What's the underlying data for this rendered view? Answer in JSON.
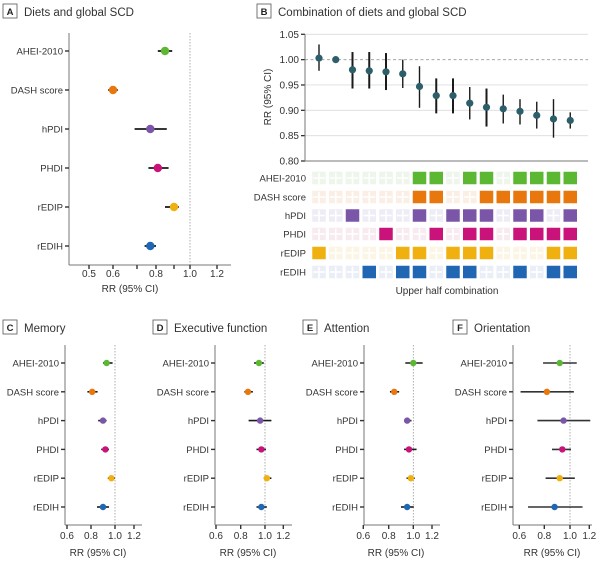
{
  "colors": {
    "AHEI-2010": "#5cb833",
    "DASH score": "#e8770e",
    "hPDI": "#7b56a8",
    "PHDI": "#c9137a",
    "rEDIP": "#f0b010",
    "rEDIH": "#2066b3",
    "combination_point": "#2c5f6a",
    "ci_line": "#1a1a1a"
  },
  "chart_data": [
    {
      "id": "A",
      "type": "scatter",
      "subtype": "forest",
      "panel_letter": "A",
      "title": "Diets and global SCD",
      "xlabel": "RR (95% CI)",
      "ylabel": "",
      "xscale": "log",
      "xlim": [
        0.43,
        1.27
      ],
      "xticks": [
        0.5,
        0.6,
        0.7,
        0.8,
        0.9,
        1.0,
        1.2
      ],
      "xtick_labels": [
        "0.5",
        "0.6",
        "",
        "0.8",
        "",
        "1.0",
        "1.2"
      ],
      "reference_line": 1.0,
      "categories": [
        "AHEI-2010",
        "DASH score",
        "hPDI",
        "PHDI",
        "rEDIP",
        "rEDIH"
      ],
      "values": [
        0.85,
        0.6,
        0.77,
        0.81,
        0.9,
        0.77
      ],
      "ci_low": [
        0.81,
        0.58,
        0.69,
        0.76,
        0.85,
        0.74
      ],
      "ci_high": [
        0.89,
        0.62,
        0.86,
        0.87,
        0.93,
        0.8
      ]
    },
    {
      "id": "B",
      "type": "scatter",
      "subtype": "combination-forest",
      "panel_letter": "B",
      "title": "Combination of diets and global SCD",
      "ylabel": "RR (95% CI)",
      "xlabel": "Upper half combination",
      "ylim": [
        0.8,
        1.05
      ],
      "yticks": [
        "1.05",
        "1.00",
        "0.95",
        "0.90",
        "0.85",
        "0.80"
      ],
      "grid": true,
      "reference_line": 1.0,
      "values": [
        1.003,
        1.0,
        0.98,
        0.978,
        0.976,
        0.972,
        0.947,
        0.929,
        0.929,
        0.914,
        0.906,
        0.903,
        0.898,
        0.89,
        0.883,
        0.88
      ],
      "ci_low": [
        0.978,
        null,
        0.943,
        0.943,
        0.94,
        0.944,
        0.905,
        0.894,
        0.894,
        0.882,
        0.868,
        0.874,
        0.872,
        0.864,
        0.846,
        0.864
      ],
      "ci_high": [
        1.03,
        null,
        1.015,
        1.015,
        1.013,
        1.0,
        0.987,
        0.963,
        0.963,
        0.946,
        0.943,
        0.931,
        0.922,
        0.917,
        0.922,
        0.896
      ],
      "matrix_rows": [
        "AHEI-2010",
        "DASH score",
        "hPDI",
        "PHDI",
        "rEDIP",
        "rEDIH"
      ],
      "matrix": [
        [
          0,
          0,
          0,
          0,
          0,
          0,
          1,
          1,
          0,
          1,
          1,
          0,
          1,
          1,
          1,
          1
        ],
        [
          0,
          0,
          0,
          0,
          0,
          0,
          1,
          1,
          0,
          0,
          1,
          1,
          1,
          1,
          1,
          1
        ],
        [
          0,
          0,
          1,
          0,
          0,
          0,
          1,
          0,
          1,
          1,
          1,
          0,
          1,
          1,
          0,
          1
        ],
        [
          0,
          0,
          0,
          0,
          1,
          0,
          0,
          1,
          0,
          1,
          1,
          0,
          1,
          1,
          1,
          1
        ],
        [
          1,
          0,
          0,
          0,
          0,
          1,
          1,
          0,
          1,
          1,
          1,
          0,
          0,
          0,
          1,
          1
        ],
        [
          0,
          0,
          0,
          1,
          0,
          1,
          1,
          0,
          1,
          1,
          0,
          0,
          1,
          0,
          1,
          1
        ]
      ]
    },
    {
      "id": "C",
      "type": "scatter",
      "subtype": "forest",
      "panel_letter": "C",
      "title": "Memory",
      "xlabel": "RR (95% CI)",
      "xlim": [
        0.55,
        1.27
      ],
      "xticks": [
        0.6,
        0.8,
        1.0,
        1.2
      ],
      "xtick_labels": [
        "0.6",
        "0.8",
        "1.0",
        "1.2"
      ],
      "reference_line": 1.0,
      "categories": [
        "AHEI-2010",
        "DASH score",
        "hPDI",
        "PHDI",
        "rEDIP",
        "rEDIH"
      ],
      "values": [
        0.93,
        0.81,
        0.9,
        0.92,
        0.97,
        0.9
      ],
      "ci_low": [
        0.9,
        0.77,
        0.86,
        0.885,
        0.94,
        0.85
      ],
      "ci_high": [
        0.98,
        0.855,
        0.93,
        0.95,
        1.0,
        0.95
      ]
    },
    {
      "id": "D",
      "type": "scatter",
      "subtype": "forest",
      "panel_letter": "D",
      "title": "Executive function",
      "xlabel": "RR (95% CI)",
      "xlim": [
        0.55,
        1.27
      ],
      "xticks": [
        0.6,
        0.8,
        1.0,
        1.2
      ],
      "xtick_labels": [
        "0.6",
        "0.8",
        "1.0",
        "1.2"
      ],
      "reference_line": 1.0,
      "categories": [
        "AHEI-2010",
        "DASH score",
        "hPDI",
        "PHDI",
        "rEDIP",
        "rEDIH"
      ],
      "values": [
        0.95,
        0.86,
        0.96,
        0.97,
        1.02,
        0.97
      ],
      "ci_low": [
        0.91,
        0.83,
        0.865,
        0.93,
        0.99,
        0.93
      ],
      "ci_high": [
        0.99,
        0.9,
        1.07,
        1.01,
        1.07,
        1.02
      ]
    },
    {
      "id": "E",
      "type": "scatter",
      "subtype": "forest",
      "panel_letter": "E",
      "title": "Attention",
      "xlabel": "RR (95% CI)",
      "xlim": [
        0.55,
        1.27
      ],
      "xticks": [
        0.6,
        0.8,
        1.0,
        1.2
      ],
      "xtick_labels": [
        "0.6",
        "0.8",
        "1.0",
        "1.2"
      ],
      "reference_line": 1.0,
      "categories": [
        "AHEI-2010",
        "DASH score",
        "hPDI",
        "PHDI",
        "rEDIP",
        "rEDIH"
      ],
      "values": [
        1.0,
        0.845,
        0.95,
        0.965,
        0.98,
        0.95
      ],
      "ci_low": [
        0.935,
        0.81,
        0.925,
        0.925,
        0.945,
        0.9
      ],
      "ci_high": [
        1.1,
        0.885,
        0.985,
        1.035,
        1.015,
        1.005
      ]
    },
    {
      "id": "F",
      "type": "scatter",
      "subtype": "forest",
      "panel_letter": "F",
      "title": "Orientation",
      "xlabel": "RR (95% CI)",
      "xlim": [
        0.55,
        1.27
      ],
      "xticks": [
        0.6,
        0.8,
        1.0,
        1.2
      ],
      "xtick_labels": [
        "0.6",
        "0.8",
        "1.0",
        "1.2"
      ],
      "reference_line": 1.0,
      "categories": [
        "AHEI-2010",
        "DASH score",
        "hPDI",
        "PHDI",
        "rEDIP",
        "rEDIH"
      ],
      "values": [
        0.92,
        0.82,
        0.95,
        0.94,
        0.92,
        0.88
      ],
      "ci_low": [
        0.79,
        0.61,
        0.745,
        0.86,
        0.81,
        0.67
      ],
      "ci_high": [
        1.07,
        1.04,
        1.21,
        1.01,
        1.05,
        1.13
      ]
    }
  ]
}
